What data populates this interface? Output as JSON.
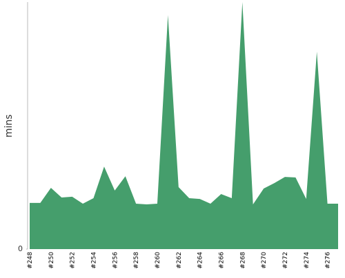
{
  "chart_data": {
    "type": "area",
    "y_label": "mins",
    "categories": [
      "#248",
      null,
      "#250",
      null,
      "#252",
      null,
      "#254",
      null,
      "#256",
      null,
      "#258",
      null,
      "#260",
      null,
      "#262",
      null,
      "#264",
      null,
      "#266",
      null,
      "#268",
      null,
      "#270",
      null,
      "#272",
      null,
      "#274",
      null,
      "#276",
      null
    ],
    "values": [
      1.87,
      1.87,
      2.48,
      2.09,
      2.12,
      1.84,
      2.06,
      3.34,
      2.37,
      2.95,
      1.84,
      1.81,
      1.84,
      9.47,
      2.51,
      2.06,
      2.03,
      1.84,
      2.23,
      2.06,
      10,
      1.81,
      2.45,
      2.67,
      2.92,
      2.9,
      2.03,
      7.99,
      1.84,
      1.84
    ],
    "color": "#459e6c",
    "ylim": [
      0,
      10
    ],
    "yticks": [
      0
    ]
  }
}
